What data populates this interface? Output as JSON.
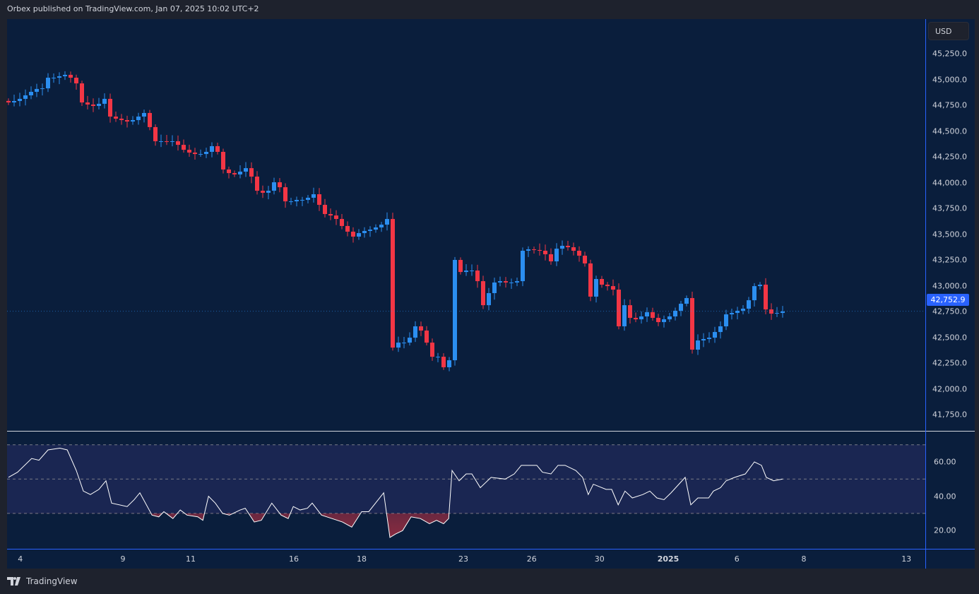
{
  "header": {
    "published": "Orbex published on TradingView.com, Jan 07, 2025 10:02 UTC+2"
  },
  "price_axis": {
    "currency": "USD",
    "labels": [
      "45,250.0",
      "45,000.0",
      "44,750.0",
      "44,500.0",
      "44,250.0",
      "44,000.0",
      "43,750.0",
      "43,500.0",
      "43,250.0",
      "43,000.0",
      "42,750.0",
      "42,500.0",
      "42,250.0",
      "42,000.0",
      "41,750.0"
    ],
    "values": [
      45250,
      45000,
      44750,
      44500,
      44250,
      44000,
      43750,
      43500,
      43250,
      43000,
      42750,
      42500,
      42250,
      42000,
      41750
    ],
    "last_price": "42,752.9",
    "last_value": 42752.9
  },
  "rsi_axis": {
    "labels": [
      "60.00",
      "40.00",
      "20.00"
    ],
    "values": [
      60,
      40,
      20
    ],
    "upper_band": 70,
    "lower_band": 30,
    "mid": 50
  },
  "time_axis": [
    {
      "label": "4",
      "bar": 2.1
    },
    {
      "label": "9",
      "bar": 20.25
    },
    {
      "label": "11",
      "bar": 32.25
    },
    {
      "label": "16",
      "bar": 50.5
    },
    {
      "label": "18",
      "bar": 62.5
    },
    {
      "label": "23",
      "bar": 80.5
    },
    {
      "label": "26",
      "bar": 92.6
    },
    {
      "label": "30",
      "bar": 104.6
    },
    {
      "label": "2025",
      "bar": 116.75,
      "bold": true
    },
    {
      "label": "6",
      "bar": 128.9
    },
    {
      "label": "8",
      "bar": 140.75
    },
    {
      "label": "13",
      "bar": 158.9
    }
  ],
  "colors": {
    "up": "#2b8ef0",
    "down": "#f23645",
    "rsi": "#ffffff",
    "band": "#1a2652",
    "bg": "#0a1e3c",
    "accent": "#2962ff"
  },
  "chart_data": {
    "type": "candlestick",
    "closes": [
      44777,
      44791,
      44812,
      44846,
      44880,
      44908,
      44914,
      45017,
      45017,
      45031,
      45045,
      45017,
      44962,
      44777,
      44757,
      44743,
      44764,
      44812,
      44640,
      44620,
      44606,
      44592,
      44606,
      44640,
      44675,
      44538,
      44401,
      44401,
      44394,
      44401,
      44366,
      44318,
      44291,
      44277,
      44277,
      44298,
      44353,
      44298,
      44127,
      44092,
      44079,
      44106,
      44140,
      44058,
      43921,
      43901,
      43921,
      44003,
      43955,
      43818,
      43818,
      43832,
      43832,
      43853,
      43887,
      43784,
      43695,
      43681,
      43647,
      43579,
      43524,
      43476,
      43510,
      43531,
      43544,
      43565,
      43592,
      43647,
      42400,
      42448,
      42448,
      42496,
      42606,
      42565,
      42448,
      42311,
      42311,
      42209,
      42277,
      43250,
      43133,
      43147,
      43147,
      43044,
      42811,
      42928,
      43031,
      43044,
      43031,
      43031,
      43044,
      43339,
      43353,
      43346,
      43339,
      43305,
      43236,
      43359,
      43387,
      43373,
      43339,
      43291,
      43216,
      42894,
      43065,
      43010,
      42996,
      42962,
      42606,
      42811,
      42688,
      42674,
      42702,
      42743,
      42688,
      42647,
      42674,
      42702,
      42757,
      42825,
      42880,
      42380,
      42469,
      42483,
      42496,
      42551,
      42606,
      42722,
      42736,
      42757,
      42777,
      42859,
      42996,
      43010,
      42770,
      42729,
      42736,
      42750
    ],
    "ylim": [
      41600,
      45450
    ],
    "rsi": [
      [
        0,
        51
      ],
      [
        1.6,
        54
      ],
      [
        4.1,
        62
      ],
      [
        5.4,
        61
      ],
      [
        7,
        67
      ],
      [
        9.1,
        68
      ],
      [
        10.4,
        67
      ],
      [
        12,
        55
      ],
      [
        13.25,
        43
      ],
      [
        14.5,
        41
      ],
      [
        16,
        44
      ],
      [
        17.25,
        49
      ],
      [
        18.25,
        36
      ],
      [
        21,
        34
      ],
      [
        22.25,
        38
      ],
      [
        23.25,
        42
      ],
      [
        25.4,
        29
      ],
      [
        26.6,
        28
      ],
      [
        27.5,
        31
      ],
      [
        29.1,
        27
      ],
      [
        30.4,
        32
      ],
      [
        31.6,
        29
      ],
      [
        33.5,
        28
      ],
      [
        34.4,
        26
      ],
      [
        35.4,
        40
      ],
      [
        36.6,
        36
      ],
      [
        37.9,
        30
      ],
      [
        39.1,
        29
      ],
      [
        41,
        32
      ],
      [
        41.9,
        33
      ],
      [
        43.5,
        25
      ],
      [
        44.75,
        26
      ],
      [
        46.6,
        36
      ],
      [
        48.25,
        29
      ],
      [
        49.5,
        27
      ],
      [
        50.4,
        34
      ],
      [
        51.6,
        32
      ],
      [
        52.9,
        33
      ],
      [
        53.75,
        36
      ],
      [
        55.4,
        29
      ],
      [
        57.25,
        27
      ],
      [
        59.1,
        25
      ],
      [
        60.75,
        22
      ],
      [
        62.5,
        31
      ],
      [
        63.75,
        31
      ],
      [
        66.4,
        42
      ],
      [
        67.5,
        16
      ],
      [
        68.5,
        18
      ],
      [
        69.75,
        20
      ],
      [
        71.25,
        28
      ],
      [
        72.9,
        27
      ],
      [
        74.5,
        24
      ],
      [
        75.75,
        26
      ],
      [
        77,
        24
      ],
      [
        77.9,
        27
      ],
      [
        78.5,
        55
      ],
      [
        79.75,
        49
      ],
      [
        81,
        53
      ],
      [
        82,
        53
      ],
      [
        83.5,
        45
      ],
      [
        85.4,
        51
      ],
      [
        87.9,
        50
      ],
      [
        89.5,
        53
      ],
      [
        90.75,
        58
      ],
      [
        93.5,
        58
      ],
      [
        94.5,
        54
      ],
      [
        96,
        53
      ],
      [
        97.25,
        58
      ],
      [
        98.5,
        58
      ],
      [
        100.4,
        55
      ],
      [
        101.6,
        51
      ],
      [
        102.6,
        41
      ],
      [
        103.5,
        47
      ],
      [
        105.75,
        44
      ],
      [
        106.75,
        44
      ],
      [
        107.9,
        35
      ],
      [
        109.1,
        43
      ],
      [
        110.4,
        39
      ],
      [
        112.25,
        41
      ],
      [
        113.5,
        43
      ],
      [
        114.75,
        39
      ],
      [
        116,
        38
      ],
      [
        117.25,
        42
      ],
      [
        119.75,
        51
      ],
      [
        120.75,
        35
      ],
      [
        122,
        39
      ],
      [
        123.9,
        39
      ],
      [
        124.75,
        43
      ],
      [
        126,
        45
      ],
      [
        127,
        49
      ],
      [
        128.5,
        51
      ],
      [
        130.4,
        53
      ],
      [
        132,
        60
      ],
      [
        133.25,
        58
      ],
      [
        134.1,
        51
      ],
      [
        135.4,
        49
      ],
      [
        137,
        50
      ]
    ]
  },
  "footer": {
    "brand": "TradingView"
  }
}
